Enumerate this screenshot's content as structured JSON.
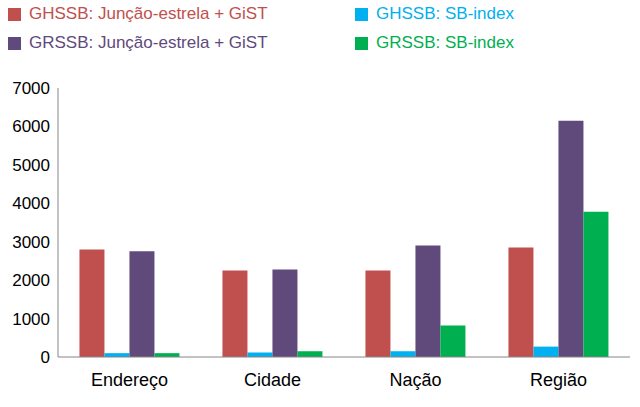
{
  "chart_data": {
    "type": "bar",
    "categories": [
      "Endereço",
      "Cidade",
      "Nação",
      "Região"
    ],
    "series": [
      {
        "name": "GHSSB: Junção-estrela + GiST",
        "color": "#c0504d",
        "values": [
          2800,
          2250,
          2250,
          2850
        ]
      },
      {
        "name": "GHSSB: SB-index",
        "color": "#00b0f0",
        "values": [
          100,
          120,
          150,
          270
        ]
      },
      {
        "name": "GRSSB: Junção-estrela + GiST",
        "color": "#604a7b",
        "values": [
          2750,
          2280,
          2900,
          6150
        ]
      },
      {
        "name": "GRSSB: SB-index",
        "color": "#00b050",
        "values": [
          100,
          150,
          820,
          3780
        ]
      }
    ],
    "ylim": [
      0,
      7000
    ],
    "yticks": [
      0,
      1000,
      2000,
      3000,
      4000,
      5000,
      6000,
      7000
    ],
    "grid": false,
    "legend": "top"
  }
}
